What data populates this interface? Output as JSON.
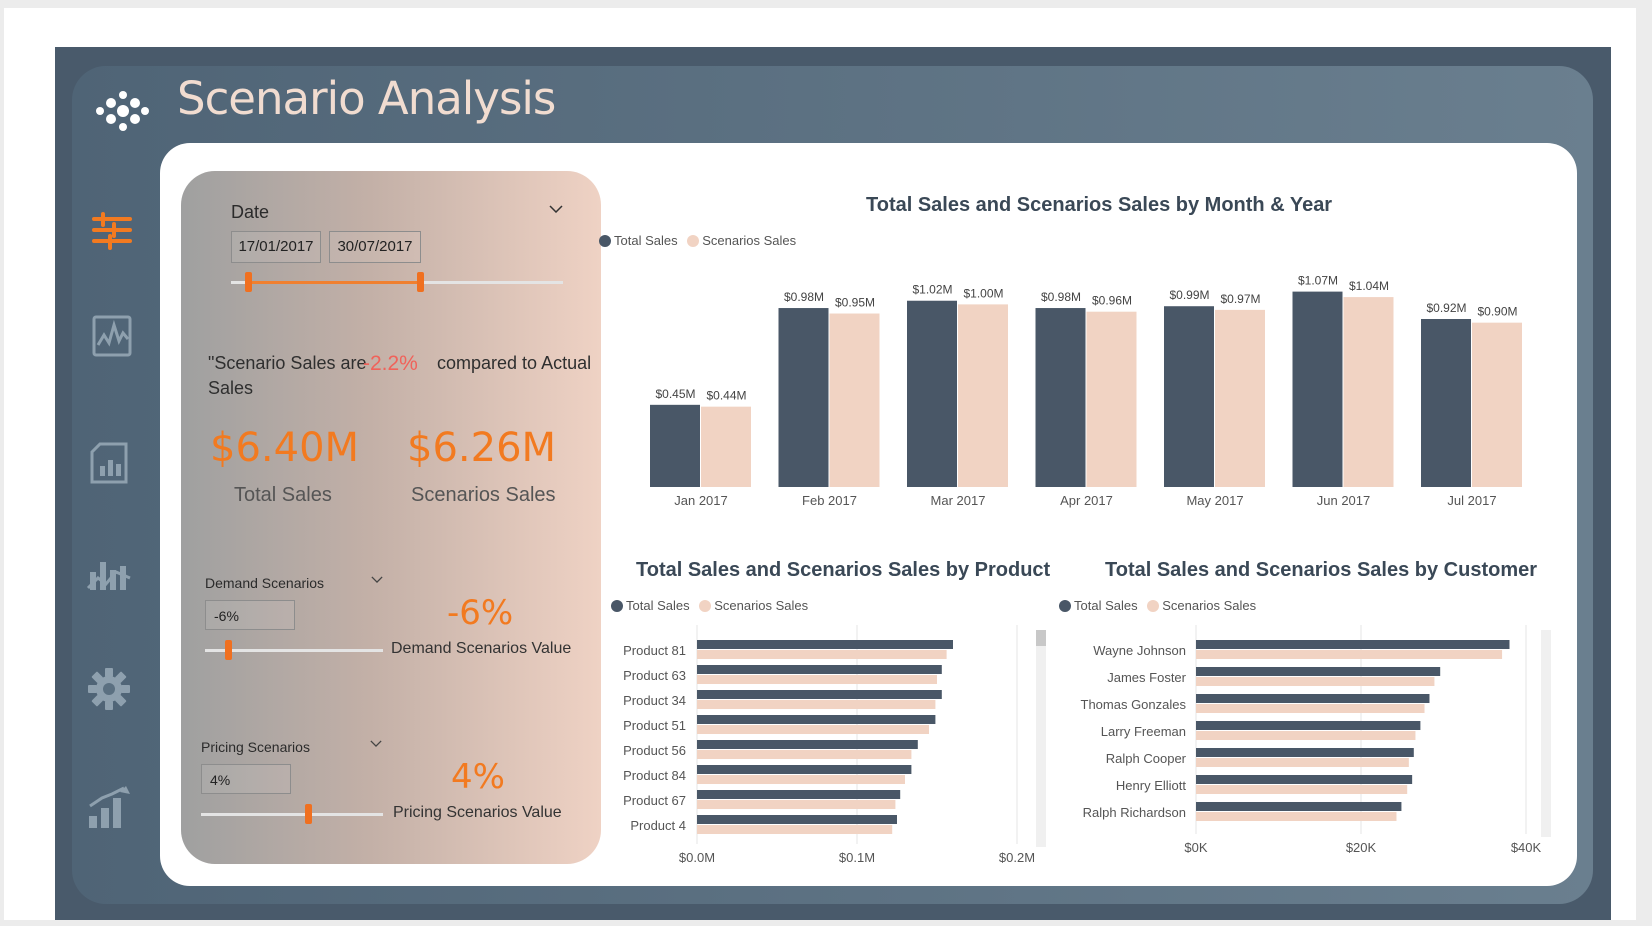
{
  "app": {
    "title": "Scenario Analysis",
    "sidebar": [
      {
        "name": "filter-icon"
      },
      {
        "name": "line-chart-icon"
      },
      {
        "name": "report-icon"
      },
      {
        "name": "analytics-icon"
      },
      {
        "name": "settings-icon"
      },
      {
        "name": "bar-chart-icon"
      }
    ]
  },
  "filters": {
    "date": {
      "label": "Date",
      "start": "17/01/2017",
      "end": "30/07/2017",
      "range_fraction": [
        0.05,
        0.57
      ]
    },
    "comparison": {
      "prefix": "\"Scenario Sales are",
      "value": "-2.2%",
      "suffix": "compared to Actual",
      "line2": "Sales"
    },
    "kpis": {
      "total_sales_value": "$6.40M",
      "total_sales_label": "Total Sales",
      "scenario_sales_value": "$6.26M",
      "scenario_sales_label": "Scenarios Sales"
    },
    "demand": {
      "label": "Demand Scenarios",
      "input": "-6%",
      "value": "-6%",
      "value_label": "Demand Scenarios Value",
      "slider_fraction": 0.13
    },
    "pricing": {
      "label": "Pricing Scenarios",
      "input": "4%",
      "value": "4%",
      "value_label": "Pricing Scenarios Value",
      "slider_fraction": 0.59
    }
  },
  "colors": {
    "total": "#495767",
    "scenario": "#f1d3c3",
    "accent": "#f27a20",
    "negative": "#f0625a"
  },
  "legend": {
    "total": "Total Sales",
    "scenario": "Scenarios Sales"
  },
  "chart_data": [
    {
      "id": "month",
      "type": "bar",
      "title": "Total Sales and Scenarios Sales by Month & Year",
      "categories": [
        "Jan 2017",
        "Feb 2017",
        "Mar 2017",
        "Apr 2017",
        "May 2017",
        "Jun 2017",
        "Jul 2017"
      ],
      "series": [
        {
          "name": "Total Sales",
          "values": [
            0.45,
            0.98,
            1.02,
            0.98,
            0.99,
            1.07,
            0.92
          ],
          "labels": [
            "$0.45M",
            "$0.98M",
            "$1.02M",
            "$0.98M",
            "$0.99M",
            "$1.07M",
            "$0.92M"
          ]
        },
        {
          "name": "Scenarios Sales",
          "values": [
            0.44,
            0.95,
            1.0,
            0.96,
            0.97,
            1.04,
            0.9
          ],
          "labels": [
            "$0.44M",
            "$0.95M",
            "$1.00M",
            "$0.96M",
            "$0.97M",
            "$1.04M",
            "$0.90M"
          ]
        }
      ],
      "ylim": [
        0,
        1.15
      ],
      "legend": "top-left"
    },
    {
      "id": "product",
      "type": "bar",
      "orientation": "horizontal",
      "title": "Total Sales and Scenarios Sales by Product",
      "categories": [
        "Product 81",
        "Product 63",
        "Product 34",
        "Product 51",
        "Product 56",
        "Product 84",
        "Product 67",
        "Product 4"
      ],
      "series": [
        {
          "name": "Total Sales",
          "values": [
            0.16,
            0.153,
            0.153,
            0.149,
            0.138,
            0.134,
            0.127,
            0.125
          ]
        },
        {
          "name": "Scenarios Sales",
          "values": [
            0.156,
            0.15,
            0.149,
            0.145,
            0.134,
            0.13,
            0.124,
            0.122
          ]
        }
      ],
      "xlim": [
        0,
        0.2
      ],
      "xticks": [
        "$0.0M",
        "$0.1M",
        "$0.2M"
      ],
      "legend": "top-left"
    },
    {
      "id": "customer",
      "type": "bar",
      "orientation": "horizontal",
      "title": "Total Sales and Scenarios Sales by Customer",
      "categories": [
        "Wayne Johnson",
        "James Foster",
        "Thomas Gonzales",
        "Larry Freeman",
        "Ralph Cooper",
        "Henry Elliott",
        "Ralph Richardson"
      ],
      "series": [
        {
          "name": "Total Sales",
          "values": [
            38000,
            29600,
            28300,
            27200,
            26400,
            26200,
            24900
          ]
        },
        {
          "name": "Scenarios Sales",
          "values": [
            37100,
            28900,
            27700,
            26600,
            25800,
            25600,
            24300
          ]
        }
      ],
      "xlim": [
        0,
        40000
      ],
      "xticks": [
        "$0K",
        "$20K",
        "$40K"
      ],
      "legend": "top-left"
    }
  ]
}
